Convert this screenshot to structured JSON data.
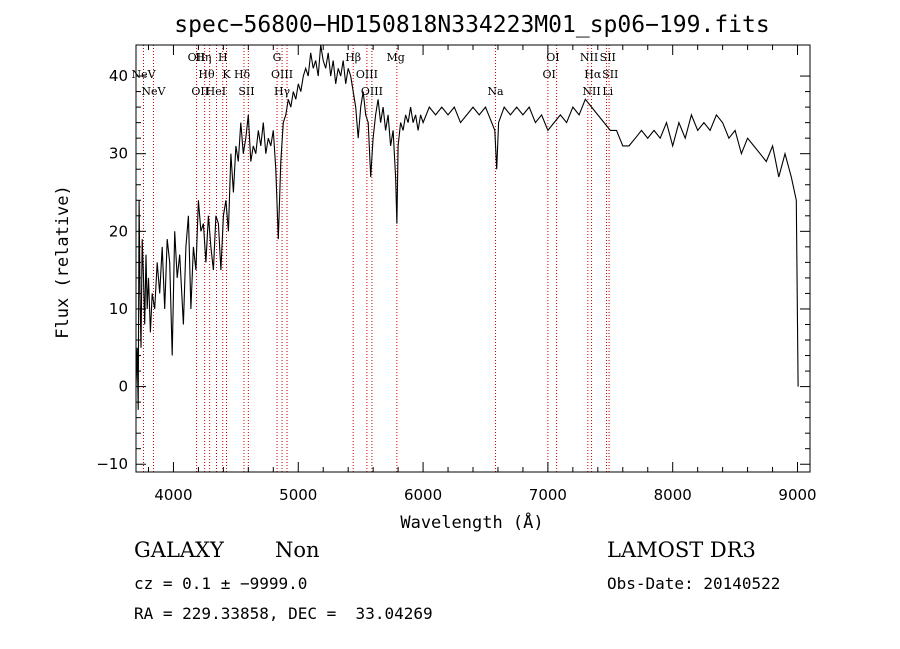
{
  "chart_data": {
    "type": "line",
    "title": "spec−56800−HD150818N334223M01_sp06−199.fits",
    "xlabel": "Wavelength (Å)",
    "ylabel": "Flux (relative)",
    "xlim": [
      3700,
      9100
    ],
    "ylim": [
      -11,
      44
    ],
    "xticks": [
      4000,
      5000,
      6000,
      7000,
      8000,
      9000
    ],
    "yticks": [
      -10,
      0,
      10,
      20,
      30,
      40
    ],
    "ytick_labels": [
      "−10",
      "0",
      "10",
      "20",
      "30",
      "40"
    ],
    "series": [
      {
        "points": [
          [
            3700,
            0
          ],
          [
            3710,
            5
          ],
          [
            3718,
            -3
          ],
          [
            3725,
            24
          ],
          [
            3732,
            12
          ],
          [
            3740,
            5
          ],
          [
            3750,
            19
          ],
          [
            3760,
            14
          ],
          [
            3770,
            8
          ],
          [
            3780,
            17
          ],
          [
            3790,
            10
          ],
          [
            3800,
            14
          ],
          [
            3815,
            7
          ],
          [
            3830,
            12
          ],
          [
            3850,
            10
          ],
          [
            3870,
            16
          ],
          [
            3890,
            12
          ],
          [
            3910,
            18
          ],
          [
            3930,
            10
          ],
          [
            3950,
            19
          ],
          [
            3970,
            16
          ],
          [
            3990,
            4
          ],
          [
            4010,
            20
          ],
          [
            4030,
            14
          ],
          [
            4050,
            17
          ],
          [
            4080,
            8
          ],
          [
            4100,
            18
          ],
          [
            4120,
            22
          ],
          [
            4140,
            10
          ],
          [
            4160,
            18
          ],
          [
            4180,
            15
          ],
          [
            4200,
            24
          ],
          [
            4220,
            20
          ],
          [
            4240,
            21
          ],
          [
            4260,
            16
          ],
          [
            4280,
            22
          ],
          [
            4300,
            18
          ],
          [
            4320,
            15
          ],
          [
            4340,
            22
          ],
          [
            4360,
            21
          ],
          [
            4380,
            15
          ],
          [
            4400,
            22
          ],
          [
            4420,
            24
          ],
          [
            4440,
            20
          ],
          [
            4460,
            30
          ],
          [
            4480,
            25
          ],
          [
            4500,
            31
          ],
          [
            4520,
            29
          ],
          [
            4540,
            34
          ],
          [
            4560,
            30
          ],
          [
            4580,
            32
          ],
          [
            4600,
            35
          ],
          [
            4620,
            29
          ],
          [
            4640,
            31
          ],
          [
            4660,
            30
          ],
          [
            4680,
            33
          ],
          [
            4700,
            31
          ],
          [
            4720,
            34
          ],
          [
            4740,
            30
          ],
          [
            4760,
            32
          ],
          [
            4780,
            31
          ],
          [
            4800,
            33
          ],
          [
            4820,
            28
          ],
          [
            4840,
            19
          ],
          [
            4860,
            29
          ],
          [
            4880,
            34
          ],
          [
            4900,
            35
          ],
          [
            4920,
            37
          ],
          [
            4940,
            36
          ],
          [
            4960,
            38
          ],
          [
            4980,
            37
          ],
          [
            5000,
            39
          ],
          [
            5020,
            38
          ],
          [
            5040,
            40
          ],
          [
            5060,
            41
          ],
          [
            5080,
            40
          ],
          [
            5100,
            43
          ],
          [
            5120,
            41
          ],
          [
            5140,
            42
          ],
          [
            5160,
            40
          ],
          [
            5180,
            44
          ],
          [
            5200,
            42
          ],
          [
            5220,
            41
          ],
          [
            5240,
            43
          ],
          [
            5260,
            40
          ],
          [
            5280,
            42
          ],
          [
            5300,
            39
          ],
          [
            5320,
            41
          ],
          [
            5340,
            40
          ],
          [
            5360,
            42
          ],
          [
            5380,
            39
          ],
          [
            5400,
            41
          ],
          [
            5420,
            40
          ],
          [
            5440,
            38
          ],
          [
            5460,
            36
          ],
          [
            5480,
            32
          ],
          [
            5500,
            36
          ],
          [
            5520,
            38
          ],
          [
            5540,
            35
          ],
          [
            5560,
            34
          ],
          [
            5580,
            27
          ],
          [
            5600,
            32
          ],
          [
            5620,
            35
          ],
          [
            5640,
            37
          ],
          [
            5660,
            34
          ],
          [
            5680,
            36
          ],
          [
            5700,
            33
          ],
          [
            5720,
            35
          ],
          [
            5740,
            31
          ],
          [
            5760,
            33
          ],
          [
            5780,
            27
          ],
          [
            5790,
            21
          ],
          [
            5800,
            31
          ],
          [
            5820,
            34
          ],
          [
            5840,
            33
          ],
          [
            5860,
            35
          ],
          [
            5880,
            34
          ],
          [
            5900,
            36
          ],
          [
            5920,
            34
          ],
          [
            5940,
            35
          ],
          [
            5960,
            33
          ],
          [
            5980,
            35
          ],
          [
            6000,
            34
          ],
          [
            6050,
            36
          ],
          [
            6100,
            35
          ],
          [
            6150,
            36
          ],
          [
            6200,
            35
          ],
          [
            6250,
            36
          ],
          [
            6300,
            34
          ],
          [
            6350,
            35
          ],
          [
            6400,
            36
          ],
          [
            6450,
            35
          ],
          [
            6500,
            36
          ],
          [
            6550,
            34
          ],
          [
            6575,
            33
          ],
          [
            6590,
            28
          ],
          [
            6605,
            34
          ],
          [
            6650,
            36
          ],
          [
            6700,
            35
          ],
          [
            6750,
            36
          ],
          [
            6800,
            35
          ],
          [
            6850,
            36
          ],
          [
            6900,
            34
          ],
          [
            6950,
            35
          ],
          [
            7000,
            33
          ],
          [
            7050,
            34
          ],
          [
            7100,
            35
          ],
          [
            7150,
            34
          ],
          [
            7200,
            36
          ],
          [
            7250,
            35
          ],
          [
            7300,
            37
          ],
          [
            7350,
            36
          ],
          [
            7400,
            35
          ],
          [
            7450,
            34
          ],
          [
            7500,
            33
          ],
          [
            7550,
            33
          ],
          [
            7600,
            31
          ],
          [
            7650,
            31
          ],
          [
            7700,
            32
          ],
          [
            7750,
            33
          ],
          [
            7800,
            32
          ],
          [
            7850,
            33
          ],
          [
            7900,
            32
          ],
          [
            7950,
            34
          ],
          [
            8000,
            31
          ],
          [
            8050,
            34
          ],
          [
            8100,
            32
          ],
          [
            8150,
            35
          ],
          [
            8200,
            33
          ],
          [
            8250,
            34
          ],
          [
            8300,
            33
          ],
          [
            8350,
            35
          ],
          [
            8400,
            34
          ],
          [
            8450,
            32
          ],
          [
            8500,
            33
          ],
          [
            8550,
            30
          ],
          [
            8600,
            32
          ],
          [
            8650,
            31
          ],
          [
            8700,
            30
          ],
          [
            8750,
            29
          ],
          [
            8800,
            31
          ],
          [
            8850,
            27
          ],
          [
            8900,
            30
          ],
          [
            8950,
            27
          ],
          [
            8990,
            24
          ],
          [
            9000,
            8
          ],
          [
            9005,
            0
          ]
        ]
      }
    ],
    "lines": [
      {
        "name": "NeV",
        "x": 3760,
        "row": 1
      },
      {
        "name": "NeV",
        "x": 3840,
        "row": 2
      },
      {
        "name": "OII",
        "x": 4185,
        "row": 0
      },
      {
        "name": "OII",
        "x": 4215,
        "row": 2
      },
      {
        "name": "Hη",
        "x": 4240,
        "row": 0
      },
      {
        "name": "Hθ",
        "x": 4265,
        "row": 1
      },
      {
        "name": "HeI",
        "x": 4340,
        "row": 2
      },
      {
        "name": "H",
        "x": 4395,
        "row": 0
      },
      {
        "name": "K",
        "x": 4425,
        "row": 1
      },
      {
        "name": "Hδ",
        "x": 4550,
        "row": 1
      },
      {
        "name": "SII",
        "x": 4585,
        "row": 2
      },
      {
        "name": "G",
        "x": 4830,
        "row": 0
      },
      {
        "name": "OIII",
        "x": 4870,
        "row": 1
      },
      {
        "name": "Hγ",
        "x": 4870,
        "row": 2
      },
      {
        "name": "Hβ",
        "x": 5440,
        "row": 0
      },
      {
        "name": "OIII",
        "x": 5550,
        "row": 1
      },
      {
        "name": "OIII",
        "x": 5590,
        "row": 2
      },
      {
        "name": "Mg",
        "x": 5780,
        "row": 0
      },
      {
        "name": "Na",
        "x": 6580,
        "row": 2
      },
      {
        "name": "OI",
        "x": 7040,
        "row": 0
      },
      {
        "name": "OI",
        "x": 7010,
        "row": 1
      },
      {
        "name": "NII",
        "x": 7330,
        "row": 0
      },
      {
        "name": "SII",
        "x": 7480,
        "row": 0
      },
      {
        "name": "Hα",
        "x": 7360,
        "row": 1
      },
      {
        "name": "SII",
        "x": 7500,
        "row": 1
      },
      {
        "name": "NII",
        "x": 7350,
        "row": 2
      },
      {
        "name": "Li",
        "x": 7480,
        "row": 2
      }
    ],
    "line_marker_positions": [
      3760,
      3840,
      4185,
      4250,
      4290,
      4345,
      4395,
      4425,
      4565,
      4600,
      4830,
      4870,
      4910,
      5440,
      5550,
      5590,
      5790,
      6580,
      7000,
      7070,
      7320,
      7350,
      7470,
      7490
    ]
  },
  "info": {
    "class": "GALAXY",
    "subclass": "Non",
    "survey": "LAMOST DR3",
    "cz": "cz = 0.1 ± −9999.0",
    "obs_date": "Obs-Date: 20140522",
    "coords": "RA = 229.33858, DEC =  33.04269"
  },
  "colors": {
    "spectrum": "#000000",
    "line_markers": "#cc0000",
    "axes": "#000000"
  }
}
